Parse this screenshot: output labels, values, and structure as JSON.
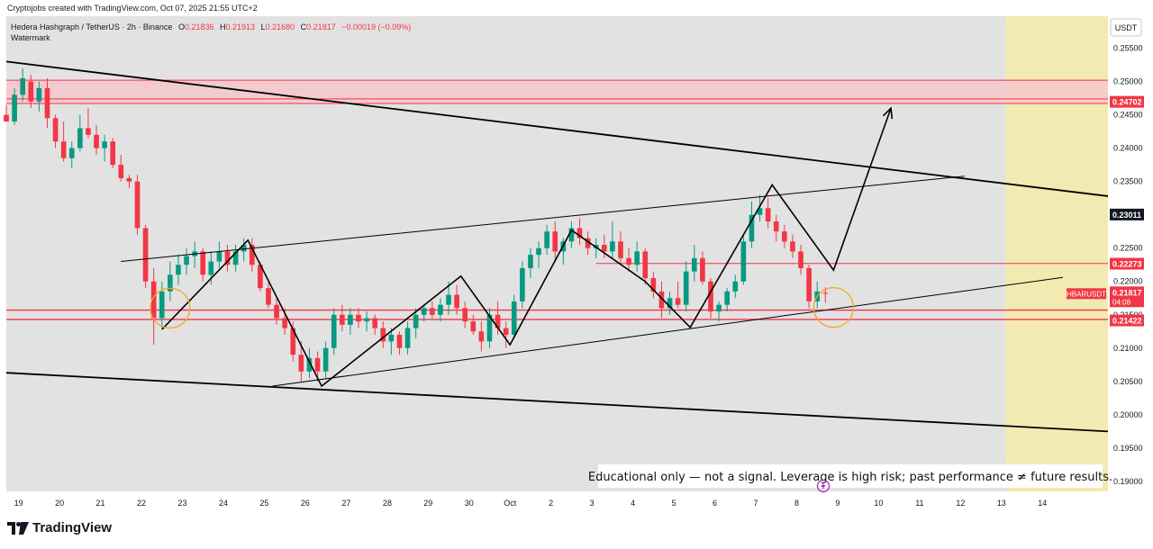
{
  "caption": "Cryptojobs created with TradingView.com, Oct 07, 2025 21:55 UTC+2",
  "header": {
    "symbol": "Hedera Hashgraph / TetherUS · 2h · Binance",
    "open_label": "O",
    "open": "0.21836",
    "high_label": "H",
    "high": "0.21913",
    "low_label": "L",
    "low": "0.21680",
    "close_label": "C",
    "close": "0.21817",
    "change": "−0.00019 (−0.09%)",
    "watermark": "Watermark"
  },
  "currency": "USDT",
  "disclaimer": "Educational only — not a signal. Leverage is high risk; past performance ≠ future results.",
  "logo_text": "TradingView",
  "colors": {
    "chart_bg": "#e2e2e2",
    "bull": "#089981",
    "bear": "#f23645",
    "resistance": "#f23645",
    "zone_fill": "#f5c6cb",
    "future_zone": "#f6eba8",
    "pattern_line": "#000000",
    "circle": "#f5a623"
  },
  "chart_data": {
    "type": "candlestick",
    "ylim": [
      0.1885,
      0.2598
    ],
    "xlim": [
      18.7,
      45.6
    ],
    "y_ticks": [
      0.255,
      0.25,
      0.245,
      0.24,
      0.235,
      0.23,
      0.225,
      0.22,
      0.215,
      0.21,
      0.205,
      0.2,
      0.195,
      0.19
    ],
    "y_tick_labels": [
      "0.25500",
      "0.25000",
      "0.24500",
      "0.24000",
      "0.23500",
      "0.23000",
      "0.22500",
      "0.22000",
      "0.21500",
      "0.21000",
      "0.20500",
      "0.20000",
      "0.19500",
      "0.19000"
    ],
    "x_ticks": [
      19,
      20,
      21,
      22,
      23,
      24,
      25,
      26,
      27,
      28,
      29,
      30,
      31,
      32,
      33,
      34,
      35,
      36,
      37,
      38,
      39,
      40,
      41,
      42,
      43,
      44,
      45
    ],
    "x_tick_labels": [
      "19",
      "20",
      "21",
      "22",
      "23",
      "24",
      "25",
      "26",
      "27",
      "28",
      "29",
      "30",
      "Oct",
      "2",
      "3",
      "4",
      "5",
      "6",
      "7",
      "8",
      "9",
      "10",
      "11",
      "12",
      "13",
      "14",
      ""
    ],
    "price_labels": [
      {
        "text": "0.24702",
        "value": 0.24702,
        "color": "#f23645"
      },
      {
        "text": "0.23011",
        "value": 0.23011,
        "color": "#131722"
      },
      {
        "text": "0.22273",
        "value": 0.22273,
        "color": "#f23645"
      },
      {
        "text": "0.21817",
        "value": 0.21817,
        "color": "#f23645",
        "symbol": "HBARUSDT",
        "countdown": "04:08"
      },
      {
        "text": "0.21422",
        "value": 0.21422,
        "color": "#f23645"
      }
    ],
    "resistance_zone": [
      0.2467,
      0.2502
    ],
    "resistance_lines": [
      0.2502,
      0.2474,
      0.2467
    ],
    "support_lines": [
      0.2157,
      0.2143
    ],
    "mid_level": {
      "from": 33.1,
      "to": 45.6,
      "value": 0.2227
    },
    "future_zone_x": [
      43.1,
      45.6
    ],
    "trend_lines": [
      {
        "x1": 18.7,
        "y1": 0.253,
        "x2": 45.6,
        "y2": 0.2328,
        "width": 1.8
      },
      {
        "x1": 18.7,
        "y1": 0.2063,
        "x2": 45.6,
        "y2": 0.1975,
        "width": 1.8
      },
      {
        "x1": 21.5,
        "y1": 0.223,
        "x2": 42.1,
        "y2": 0.2358,
        "width": 1.0
      },
      {
        "x1": 25.2,
        "y1": 0.2043,
        "x2": 44.5,
        "y2": 0.2206,
        "width": 1.0
      }
    ],
    "zigzag": [
      [
        22.5,
        0.2128
      ],
      [
        24.6,
        0.2262
      ],
      [
        26.4,
        0.2043
      ],
      [
        29.8,
        0.2208
      ],
      [
        31.0,
        0.2105
      ],
      [
        32.5,
        0.2277
      ],
      [
        34.3,
        0.22
      ],
      [
        35.4,
        0.2131
      ],
      [
        37.4,
        0.2345
      ],
      [
        38.9,
        0.2217
      ],
      [
        40.3,
        0.246
      ]
    ],
    "circles": [
      [
        22.7,
        0.216
      ],
      [
        38.9,
        0.2161
      ]
    ],
    "candles": [
      [
        18.7,
        0.245,
        0.2465,
        0.244,
        0.244
      ],
      [
        18.9,
        0.244,
        0.249,
        0.2435,
        0.248
      ],
      [
        19.1,
        0.248,
        0.252,
        0.247,
        0.2505
      ],
      [
        19.3,
        0.25,
        0.251,
        0.246,
        0.247
      ],
      [
        19.5,
        0.247,
        0.25,
        0.2455,
        0.249
      ],
      [
        19.7,
        0.249,
        0.2505,
        0.243,
        0.2445
      ],
      [
        19.9,
        0.2445,
        0.245,
        0.24,
        0.241
      ],
      [
        20.1,
        0.241,
        0.244,
        0.238,
        0.2385
      ],
      [
        20.3,
        0.2385,
        0.241,
        0.237,
        0.24
      ],
      [
        20.5,
        0.24,
        0.245,
        0.2395,
        0.243
      ],
      [
        20.7,
        0.243,
        0.246,
        0.2415,
        0.242
      ],
      [
        20.9,
        0.242,
        0.2435,
        0.239,
        0.24
      ],
      [
        21.1,
        0.24,
        0.242,
        0.238,
        0.241
      ],
      [
        21.3,
        0.241,
        0.2415,
        0.237,
        0.2375
      ],
      [
        21.5,
        0.2375,
        0.239,
        0.235,
        0.2355
      ],
      [
        21.7,
        0.2355,
        0.236,
        0.234,
        0.235
      ],
      [
        21.9,
        0.235,
        0.236,
        0.227,
        0.228
      ],
      [
        22.1,
        0.228,
        0.2285,
        0.219,
        0.22
      ],
      [
        22.3,
        0.22,
        0.222,
        0.2105,
        0.2145
      ],
      [
        22.5,
        0.2145,
        0.22,
        0.213,
        0.2185
      ],
      [
        22.7,
        0.2185,
        0.223,
        0.217,
        0.221
      ],
      [
        22.9,
        0.221,
        0.224,
        0.2195,
        0.2225
      ],
      [
        23.1,
        0.2225,
        0.225,
        0.221,
        0.2238
      ],
      [
        23.3,
        0.2238,
        0.226,
        0.222,
        0.2245
      ],
      [
        23.5,
        0.2245,
        0.225,
        0.22,
        0.221
      ],
      [
        23.7,
        0.221,
        0.2245,
        0.2195,
        0.223
      ],
      [
        23.9,
        0.223,
        0.226,
        0.222,
        0.2245
      ],
      [
        24.1,
        0.2245,
        0.2255,
        0.2215,
        0.2225
      ],
      [
        24.3,
        0.2225,
        0.2255,
        0.2215,
        0.2245
      ],
      [
        24.5,
        0.2245,
        0.2265,
        0.223,
        0.2255
      ],
      [
        24.7,
        0.2255,
        0.2265,
        0.2215,
        0.2225
      ],
      [
        24.9,
        0.2225,
        0.223,
        0.2185,
        0.219
      ],
      [
        25.1,
        0.219,
        0.22,
        0.216,
        0.2165
      ],
      [
        25.3,
        0.2165,
        0.2175,
        0.2135,
        0.2145
      ],
      [
        25.5,
        0.2145,
        0.216,
        0.212,
        0.213
      ],
      [
        25.7,
        0.213,
        0.214,
        0.208,
        0.209
      ],
      [
        25.9,
        0.209,
        0.211,
        0.205,
        0.2065
      ],
      [
        26.1,
        0.2065,
        0.21,
        0.2055,
        0.2085
      ],
      [
        26.3,
        0.2085,
        0.2095,
        0.205,
        0.2065
      ],
      [
        26.5,
        0.2065,
        0.211,
        0.2055,
        0.21
      ],
      [
        26.7,
        0.21,
        0.216,
        0.209,
        0.215
      ],
      [
        26.9,
        0.215,
        0.2165,
        0.2125,
        0.2135
      ],
      [
        27.1,
        0.2135,
        0.216,
        0.212,
        0.215
      ],
      [
        27.3,
        0.215,
        0.216,
        0.213,
        0.214
      ],
      [
        27.5,
        0.214,
        0.2155,
        0.2125,
        0.2145
      ],
      [
        27.7,
        0.2145,
        0.215,
        0.212,
        0.213
      ],
      [
        27.9,
        0.213,
        0.214,
        0.21,
        0.211
      ],
      [
        28.1,
        0.211,
        0.213,
        0.209,
        0.212
      ],
      [
        28.3,
        0.212,
        0.2125,
        0.209,
        0.21
      ],
      [
        28.5,
        0.21,
        0.214,
        0.209,
        0.213
      ],
      [
        28.7,
        0.213,
        0.216,
        0.2115,
        0.215
      ],
      [
        28.9,
        0.215,
        0.2165,
        0.214,
        0.216
      ],
      [
        29.1,
        0.216,
        0.217,
        0.2145,
        0.215
      ],
      [
        29.3,
        0.215,
        0.2175,
        0.214,
        0.2165
      ],
      [
        29.5,
        0.2165,
        0.22,
        0.215,
        0.218
      ],
      [
        29.7,
        0.218,
        0.2195,
        0.215,
        0.216
      ],
      [
        29.9,
        0.216,
        0.217,
        0.213,
        0.214
      ],
      [
        30.1,
        0.214,
        0.215,
        0.212,
        0.2125
      ],
      [
        30.3,
        0.2125,
        0.214,
        0.2095,
        0.211
      ],
      [
        30.5,
        0.211,
        0.216,
        0.21,
        0.215
      ],
      [
        30.7,
        0.215,
        0.217,
        0.212,
        0.213
      ],
      [
        30.9,
        0.213,
        0.214,
        0.21,
        0.212
      ],
      [
        31.1,
        0.212,
        0.218,
        0.2115,
        0.217
      ],
      [
        31.3,
        0.217,
        0.223,
        0.216,
        0.222
      ],
      [
        31.5,
        0.222,
        0.225,
        0.2205,
        0.224
      ],
      [
        31.7,
        0.224,
        0.226,
        0.222,
        0.225
      ],
      [
        31.9,
        0.225,
        0.2285,
        0.224,
        0.2275
      ],
      [
        32.1,
        0.2275,
        0.229,
        0.223,
        0.2245
      ],
      [
        32.3,
        0.2245,
        0.2265,
        0.2225,
        0.226
      ],
      [
        32.5,
        0.226,
        0.229,
        0.225,
        0.228
      ],
      [
        32.7,
        0.228,
        0.2295,
        0.2255,
        0.2265
      ],
      [
        32.9,
        0.2265,
        0.2275,
        0.224,
        0.225
      ],
      [
        33.1,
        0.225,
        0.2265,
        0.2235,
        0.2255
      ],
      [
        33.3,
        0.2255,
        0.227,
        0.2235,
        0.2245
      ],
      [
        33.5,
        0.2245,
        0.229,
        0.2235,
        0.226
      ],
      [
        33.7,
        0.226,
        0.2275,
        0.2225,
        0.2235
      ],
      [
        33.9,
        0.2235,
        0.225,
        0.2215,
        0.2225
      ],
      [
        34.1,
        0.2225,
        0.226,
        0.2215,
        0.2245
      ],
      [
        34.3,
        0.2245,
        0.225,
        0.2195,
        0.2205
      ],
      [
        34.5,
        0.2205,
        0.2215,
        0.2175,
        0.2185
      ],
      [
        34.7,
        0.2185,
        0.22,
        0.2145,
        0.216
      ],
      [
        34.9,
        0.216,
        0.2185,
        0.215,
        0.2175
      ],
      [
        35.1,
        0.2175,
        0.22,
        0.216,
        0.2165
      ],
      [
        35.3,
        0.2165,
        0.223,
        0.2155,
        0.2215
      ],
      [
        35.5,
        0.2215,
        0.2255,
        0.22,
        0.2235
      ],
      [
        35.7,
        0.2235,
        0.2245,
        0.2195,
        0.22
      ],
      [
        35.9,
        0.22,
        0.2205,
        0.2145,
        0.2155
      ],
      [
        36.1,
        0.2155,
        0.217,
        0.214,
        0.2165
      ],
      [
        36.3,
        0.2165,
        0.219,
        0.2155,
        0.2185
      ],
      [
        36.5,
        0.2185,
        0.221,
        0.2175,
        0.22
      ],
      [
        36.7,
        0.22,
        0.227,
        0.2195,
        0.226
      ],
      [
        36.9,
        0.226,
        0.232,
        0.225,
        0.23
      ],
      [
        37.1,
        0.23,
        0.233,
        0.229,
        0.231
      ],
      [
        37.3,
        0.231,
        0.2325,
        0.228,
        0.229
      ],
      [
        37.5,
        0.229,
        0.23,
        0.226,
        0.2275
      ],
      [
        37.7,
        0.2275,
        0.2285,
        0.225,
        0.226
      ],
      [
        37.9,
        0.226,
        0.227,
        0.2235,
        0.2245
      ],
      [
        38.1,
        0.2245,
        0.2255,
        0.221,
        0.222
      ],
      [
        38.3,
        0.222,
        0.2225,
        0.216,
        0.217
      ],
      [
        38.5,
        0.217,
        0.22,
        0.216,
        0.2185
      ],
      [
        38.7,
        0.2183,
        0.2191,
        0.2168,
        0.2182
      ]
    ]
  }
}
